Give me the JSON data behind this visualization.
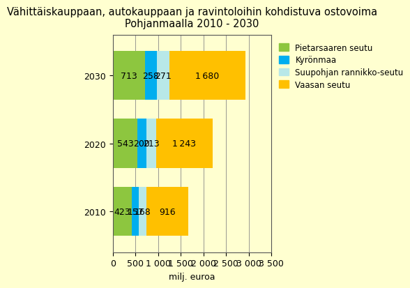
{
  "title": "Vähittäiskauppaan, autokauppaan ja ravintoloihin kohdistuva ostovoima\nPohjanmaalla 2010 - 2030",
  "years": [
    "2030",
    "2020",
    "2010"
  ],
  "series": [
    {
      "label": "Pietarsaaren seutu",
      "color": "#8DC63F",
      "values": [
        713,
        543,
        423
      ]
    },
    {
      "label": "Kyrönmaa",
      "color": "#00AEEF",
      "values": [
        258,
        200,
        157
      ]
    },
    {
      "label": "Suupohjan rannikko-seutu",
      "color": "#B8E8E8",
      "values": [
        271,
        213,
        168
      ]
    },
    {
      "label": "Vaasan seutu",
      "color": "#FFC000",
      "values": [
        1680,
        1243,
        916
      ]
    }
  ],
  "xlabel": "milj. euroa",
  "xlim": [
    0,
    3500
  ],
  "xticks": [
    0,
    500,
    1000,
    1500,
    2000,
    2500,
    3000,
    3500
  ],
  "xtick_labels": [
    "0",
    "500",
    "1 000",
    "1 500",
    "2 000",
    "2 500",
    "3 000",
    "3 500"
  ],
  "bar_height": 0.72,
  "background_color": "#FFFFD0",
  "plot_background_color": "#FFFFD0",
  "grid_color": "#888888",
  "label_fontsize": 9,
  "title_fontsize": 10.5,
  "axis_fontsize": 9,
  "value_labels": [
    "1 680",
    "258",
    "271",
    "713",
    "1 243",
    "200",
    "213",
    "543",
    "916",
    "157",
    "168",
    "423"
  ]
}
